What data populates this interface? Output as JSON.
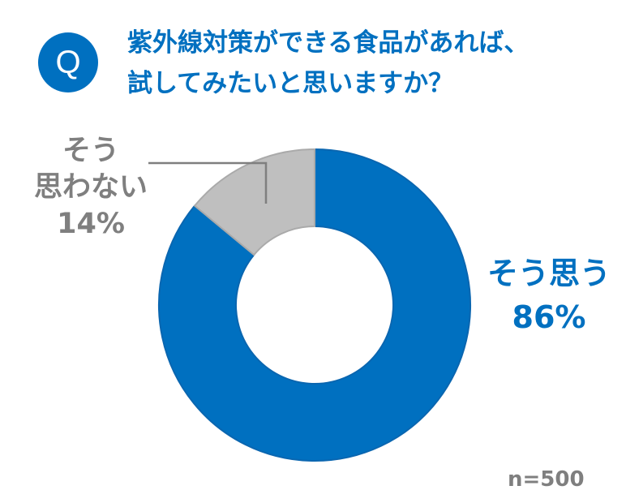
{
  "header": {
    "badge": "Q",
    "title_lines": [
      "紫外線対策ができる食品があれば、",
      "試してみたいと思いますか？"
    ]
  },
  "chart_data": {
    "type": "pie",
    "subtype": "donut",
    "title": "紫外線対策ができる食品があれば、試してみたいと思いますか？",
    "categories": [
      "そう思う",
      "そう思わない"
    ],
    "values": [
      86,
      14
    ],
    "unit": "%",
    "colors": [
      "#0070C0",
      "#BFBFBF"
    ],
    "sample_size": "n=500",
    "legend": "none (direct labels)"
  },
  "labels": {
    "yes": {
      "text": "そう思う",
      "pct": "86%"
    },
    "no": {
      "line1": "そう",
      "line2": "思わない",
      "pct": "14%"
    }
  },
  "footer": {
    "n": "n=500"
  },
  "colors": {
    "accent": "#0070C0",
    "gray_text": "#7F7F7F",
    "gray_slice": "#BFBFBF"
  }
}
